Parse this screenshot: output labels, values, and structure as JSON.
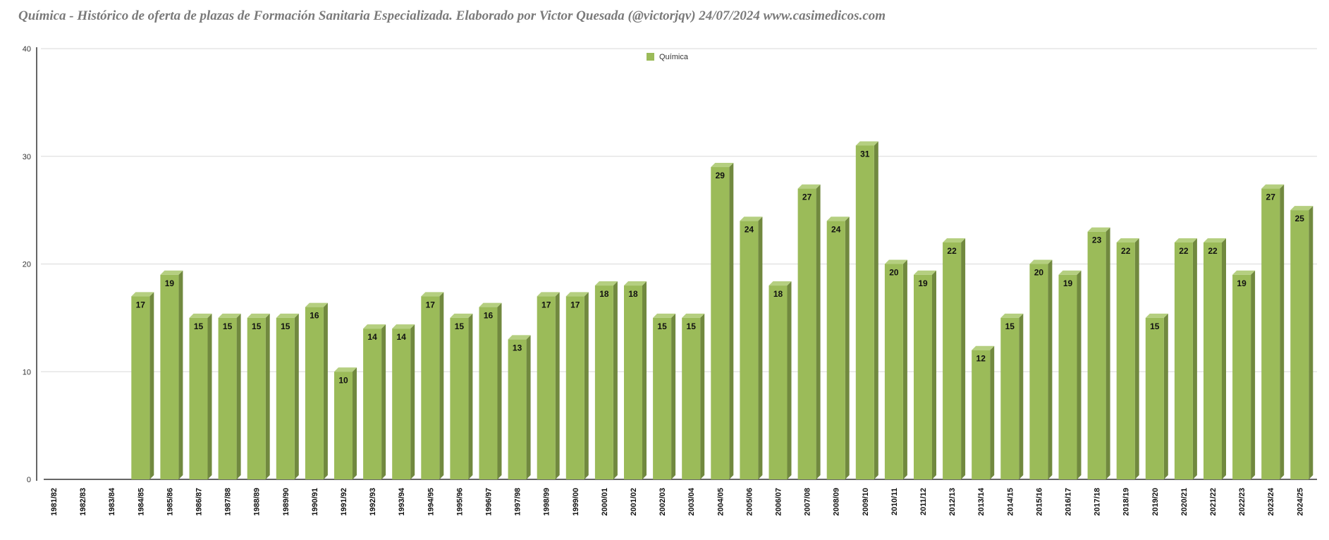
{
  "chart_data": {
    "type": "bar",
    "title": "Química - Histórico de oferta de plazas de Formación Sanitaria Especializada. Elaborado por Victor Quesada (@victorjqv)  24/07/2024 www.casimedicos.com",
    "categories": [
      "1981/82",
      "1982/83",
      "1983/84",
      "1984/85",
      "1985/86",
      "1986/87",
      "1987/88",
      "1988/89",
      "1989/90",
      "1990/91",
      "1991/92",
      "1992/93",
      "1993/94",
      "1994/95",
      "1995/96",
      "1996/97",
      "1997/98",
      "1998/99",
      "1999/00",
      "2000/01",
      "2001/02",
      "2002/03",
      "2003/04",
      "2004/05",
      "2005/06",
      "2006/07",
      "2007/08",
      "2008/09",
      "2009/10",
      "2010/11",
      "2011/12",
      "2012/13",
      "2013/14",
      "2014/15",
      "2015/16",
      "2016/17",
      "2017/18",
      "2018/19",
      "2019/20",
      "2020/21",
      "2021/22",
      "2022/23",
      "2023/24",
      "2024/25"
    ],
    "series": [
      {
        "name": "Química",
        "values": [
          0,
          0,
          0,
          17,
          19,
          15,
          15,
          15,
          15,
          16,
          10,
          14,
          14,
          17,
          15,
          16,
          13,
          17,
          17,
          18,
          18,
          15,
          15,
          29,
          24,
          18,
          27,
          24,
          31,
          20,
          19,
          22,
          12,
          15,
          20,
          19,
          23,
          22,
          15,
          22,
          22,
          19,
          27,
          25
        ]
      }
    ],
    "ylim": [
      0,
      40
    ],
    "yticks": [
      0,
      10,
      20,
      30,
      40
    ],
    "xlabel": "",
    "ylabel": "",
    "grid": true,
    "legend_position": "top-center",
    "style": "3d",
    "colors": {
      "bar_front": "#9bbb59",
      "bar_top": "#b5cf80",
      "bar_side": "#71893f",
      "grid": "#d9d9d9",
      "axis": "#333333",
      "title": "#7a7a7a"
    }
  }
}
